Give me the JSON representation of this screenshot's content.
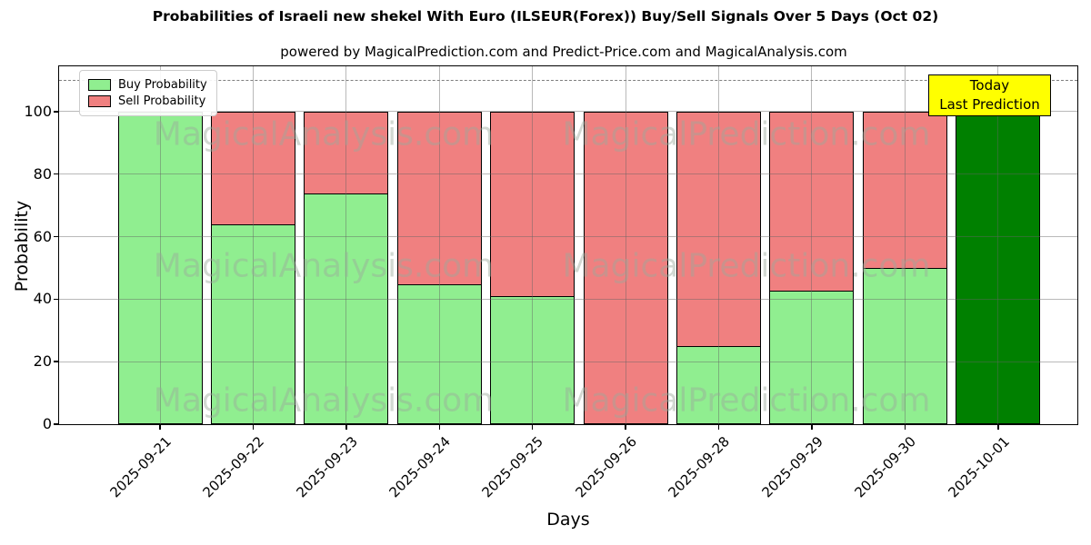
{
  "chart": {
    "title": "Probabilities of Israeli new shekel With Euro (ILSEUR(Forex)) Buy/Sell Signals Over 5 Days (Oct 02)",
    "subtitle": "powered by MagicalPrediction.com and Predict-Price.com and MagicalAnalysis.com",
    "xlabel": "Days",
    "ylabel": "Probability",
    "legend": [
      {
        "label": "Buy Probability",
        "color": "#90ee90"
      },
      {
        "label": "Sell Probability",
        "color": "#f08080"
      }
    ],
    "annotation": {
      "line1": "Today",
      "line2": "Last Prediction",
      "bg": "#ffff00",
      "border": "#000000"
    },
    "watermarks": [
      "MagicalAnalysis.com",
      "MagicalPrediction.com"
    ]
  },
  "chart_data": {
    "type": "bar",
    "stacked": true,
    "categories": [
      "2025-09-21",
      "2025-09-22",
      "2025-09-23",
      "2025-09-24",
      "2025-09-25",
      "2025-09-26",
      "2025-09-28",
      "2025-09-29",
      "2025-09-30",
      "2025-10-01"
    ],
    "series": [
      {
        "name": "Buy Probability",
        "color": "#90ee90",
        "values": [
          100,
          64,
          74,
          45,
          41,
          0,
          25,
          43,
          50,
          100
        ]
      },
      {
        "name": "Sell Probability",
        "color": "#f08080",
        "values": [
          0,
          36,
          26,
          55,
          59,
          100,
          75,
          57,
          50,
          0
        ]
      }
    ],
    "today_index": 9,
    "today_color": "#008000",
    "bar_edge_color": "#000000",
    "yticks": [
      0,
      20,
      40,
      60,
      80,
      100
    ],
    "ylim": [
      0,
      114.5
    ],
    "dashed_line_y": 110,
    "grid": true,
    "legend_position": "upper left",
    "xlabel": "Days",
    "ylabel": "Probability"
  }
}
